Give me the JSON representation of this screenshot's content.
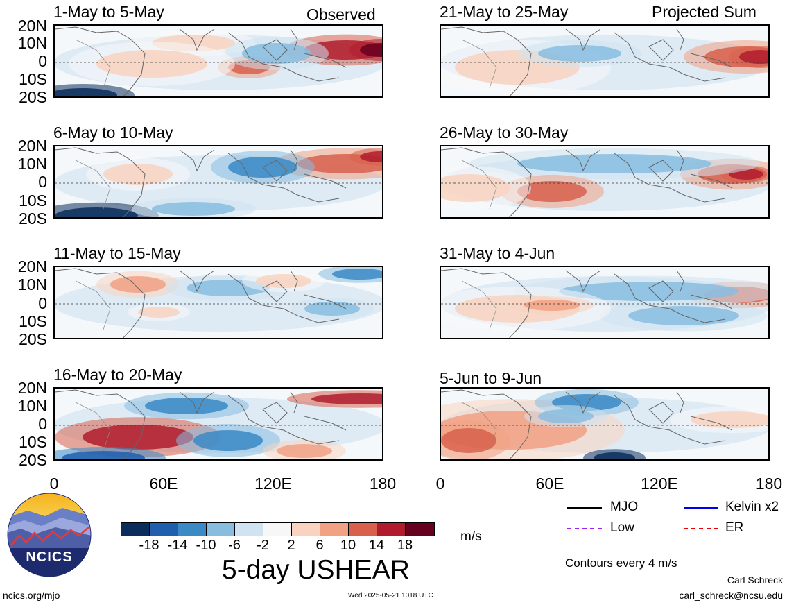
{
  "title": "5-day USHEAR",
  "units": "m/s",
  "headers": {
    "left": "Observed",
    "right": "Projected Sum"
  },
  "lat_labels": [
    "20N",
    "10N",
    "0",
    "10S",
    "20S"
  ],
  "lon_labels": [
    "0",
    "60E",
    "120E",
    "180"
  ],
  "panels": {
    "left": [
      {
        "title": "1-May to 5-May"
      },
      {
        "title": "6-May to 10-May"
      },
      {
        "title": "11-May to 15-May"
      },
      {
        "title": "16-May to 20-May"
      }
    ],
    "right": [
      {
        "title": "21-May to 25-May"
      },
      {
        "title": "26-May to 30-May"
      },
      {
        "title": "31-May to 4-Jun"
      },
      {
        "title": "5-Jun to 9-Jun"
      }
    ]
  },
  "colorbar": {
    "labels": [
      "-18",
      "-14",
      "-10",
      "-6",
      "-2",
      "2",
      "6",
      "10",
      "14",
      "18"
    ],
    "colors": [
      "#0b2d5c",
      "#1f5fae",
      "#3a8ac6",
      "#88bde0",
      "#cfe3f1",
      "#f7f7f7",
      "#f9d3bf",
      "#f1a184",
      "#d8604d",
      "#b01c2e",
      "#67001f"
    ]
  },
  "legend": {
    "items": [
      {
        "label": "MJO",
        "color": "#000000"
      },
      {
        "label": "Kelvin x2",
        "color": "#0000ee"
      },
      {
        "label": "Low",
        "color": "#a020f0"
      },
      {
        "label": "ER",
        "color": "#ee0000"
      }
    ],
    "contours_note": "Contours every 4 m/s"
  },
  "logo": {
    "text": "NCICS"
  },
  "footer": {
    "left_url": "ncics.org/mjo",
    "timestamp": "Wed 2025-05-21 1018 UTC",
    "author": "Carl Schreck",
    "email": "carl_schreck@ncsu.edu"
  }
}
